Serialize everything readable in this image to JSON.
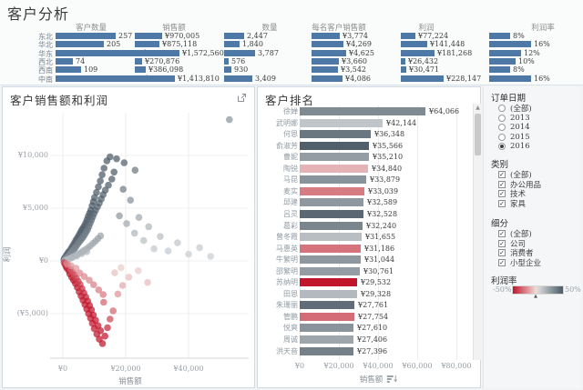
{
  "page_title": "客户分析",
  "colors": {
    "bar_blue": "#4e79a7",
    "scale_negative": "#c0152b",
    "scale_mid_low": "#eedbd7",
    "scale_mid_high": "#cdd1d4",
    "scale_positive": "#4b5a66"
  },
  "top_charts": {
    "regions": [
      "东北",
      "华北",
      "华东",
      "西北",
      "西南",
      "中南"
    ],
    "charts": [
      {
        "title": "客户数量",
        "type": "bar",
        "values": [
          257,
          205,
          340,
          74,
          109,
          346
        ],
        "labels": [
          "257",
          "205",
          "340",
          "74",
          "109",
          "346"
        ]
      },
      {
        "title": "销售额",
        "type": "bar",
        "values": [
          970005,
          875118,
          1572560,
          270876,
          386098,
          1413810
        ],
        "labels": [
          "¥970,005",
          "¥875,118",
          "¥1,572,560",
          "¥270,876",
          "¥386,098",
          "¥1,413,810"
        ]
      },
      {
        "title": "数量",
        "type": "bar",
        "values": [
          2447,
          1840,
          3787,
          576,
          930,
          3409
        ],
        "labels": [
          "2,447",
          "1,840",
          "3,787",
          "576",
          "930",
          "3,409"
        ]
      },
      {
        "title": "每名客户销售额",
        "type": "bar",
        "values": [
          3774,
          4269,
          4625,
          3660,
          3542,
          4086
        ],
        "labels": [
          "¥3,774",
          "¥4,269",
          "¥4,625",
          "¥3,660",
          "¥3,542",
          "¥4,086"
        ]
      },
      {
        "title": "利润",
        "type": "bar",
        "values": [
          77224,
          141448,
          181268,
          26432,
          30471,
          228147
        ],
        "labels": [
          "¥77,224",
          "¥141,448",
          "¥181,268",
          "¥26,432",
          "¥30,471",
          "¥228,147"
        ]
      },
      {
        "title": "利润率",
        "type": "bar",
        "values": [
          8,
          16,
          12,
          10,
          8,
          16
        ],
        "labels": [
          "8%",
          "16%",
          "12%",
          "10%",
          "8%",
          "16%"
        ]
      }
    ]
  },
  "scatter": {
    "title": "客户销售额和利润",
    "type": "scatter",
    "xlabel": "销售额",
    "ylabel": "利润",
    "x_ticks": [
      {
        "label": "¥0",
        "value": 0
      },
      {
        "label": "¥20,000",
        "value": 20000
      },
      {
        "label": "¥40,000",
        "value": 40000
      }
    ],
    "y_ticks": [
      {
        "label": "¥10,000",
        "value": 10000
      },
      {
        "label": "¥5,000",
        "value": 5000
      },
      {
        "label": "¥0",
        "value": 0
      },
      {
        "label": "(¥5,000)",
        "value": -5000
      }
    ],
    "points": [
      [
        300,
        100
      ],
      [
        500,
        260
      ],
      [
        700,
        150
      ],
      [
        900,
        420
      ],
      [
        1100,
        300
      ],
      [
        1300,
        620
      ],
      [
        1500,
        360
      ],
      [
        1700,
        820
      ],
      [
        1900,
        500
      ],
      [
        2100,
        930
      ],
      [
        2300,
        640
      ],
      [
        2500,
        1120
      ],
      [
        2700,
        790
      ],
      [
        2900,
        1310
      ],
      [
        3100,
        940
      ],
      [
        3300,
        1520
      ],
      [
        3500,
        1080
      ],
      [
        3700,
        1710
      ],
      [
        3900,
        1240
      ],
      [
        4100,
        1930
      ],
      [
        4300,
        1400
      ],
      [
        4500,
        2120
      ],
      [
        4700,
        1590
      ],
      [
        4900,
        2330
      ],
      [
        5100,
        1760
      ],
      [
        5300,
        2540
      ],
      [
        5500,
        1900
      ],
      [
        5700,
        2760
      ],
      [
        5900,
        2060
      ],
      [
        6100,
        2970
      ],
      [
        6300,
        2210
      ],
      [
        6500,
        3140
      ],
      [
        6700,
        2380
      ],
      [
        6900,
        3350
      ],
      [
        7100,
        2580
      ],
      [
        7300,
        3620
      ],
      [
        7500,
        2790
      ],
      [
        7700,
        3910
      ],
      [
        7900,
        2990
      ],
      [
        8100,
        4230
      ],
      [
        8300,
        3280
      ],
      [
        8500,
        4520
      ],
      [
        8700,
        3590
      ],
      [
        8900,
        4810
      ],
      [
        9100,
        3880
      ],
      [
        9300,
        5230
      ],
      [
        9500,
        4190
      ],
      [
        9700,
        5620
      ],
      [
        9900,
        4480
      ],
      [
        10100,
        6010
      ],
      [
        10400,
        4790
      ],
      [
        10700,
        6490
      ],
      [
        11000,
        5120
      ],
      [
        11300,
        7030
      ],
      [
        11600,
        5480
      ],
      [
        11900,
        7580
      ],
      [
        12200,
        5870
      ],
      [
        12500,
        8170
      ],
      [
        12800,
        6280
      ],
      [
        13100,
        8790
      ],
      [
        13500,
        6710
      ],
      [
        14000,
        9480
      ],
      [
        14500,
        7180
      ],
      [
        15000,
        9860
      ],
      [
        15600,
        7760
      ],
      [
        16300,
        8420
      ],
      [
        17100,
        9680
      ],
      [
        19500,
        9300
      ],
      [
        23000,
        8600
      ],
      [
        18000,
        4280
      ],
      [
        19200,
        6790
      ],
      [
        20300,
        3540
      ],
      [
        21500,
        5760
      ],
      [
        22800,
        2640
      ],
      [
        24200,
        4120
      ],
      [
        25700,
        1930
      ],
      [
        27300,
        3240
      ],
      [
        29000,
        1150
      ],
      [
        31000,
        2310
      ],
      [
        33500,
        940
      ],
      [
        36500,
        1720
      ],
      [
        40000,
        640
      ],
      [
        43500,
        1260
      ],
      [
        47000,
        430
      ],
      [
        53000,
        13400
      ],
      [
        800,
        80
      ],
      [
        1600,
        140
      ],
      [
        2400,
        260
      ],
      [
        3200,
        380
      ],
      [
        4000,
        520
      ],
      [
        4800,
        640
      ],
      [
        5600,
        780
      ],
      [
        6400,
        940
      ],
      [
        7200,
        1080
      ],
      [
        8000,
        1260
      ],
      [
        8800,
        1440
      ],
      [
        9600,
        1660
      ],
      [
        10400,
        1880
      ],
      [
        11200,
        2120
      ],
      [
        12000,
        2380
      ],
      [
        2000,
        180
      ],
      [
        3000,
        330
      ],
      [
        4400,
        460
      ],
      [
        6000,
        700
      ],
      [
        7600,
        880
      ],
      [
        400,
        -160
      ],
      [
        700,
        -310
      ],
      [
        1000,
        -520
      ],
      [
        1300,
        -710
      ],
      [
        1600,
        -420
      ],
      [
        1900,
        -920
      ],
      [
        2200,
        -1230
      ],
      [
        2500,
        -830
      ],
      [
        2800,
        -1540
      ],
      [
        3100,
        -1040
      ],
      [
        3400,
        -1830
      ],
      [
        3700,
        -1320
      ],
      [
        4000,
        -2140
      ],
      [
        4300,
        -1630
      ],
      [
        4600,
        -2520
      ],
      [
        4900,
        -1940
      ],
      [
        5200,
        -2930
      ],
      [
        5500,
        -2240
      ],
      [
        5800,
        -3340
      ],
      [
        6100,
        -2640
      ],
      [
        6400,
        -3730
      ],
      [
        6700,
        -3040
      ],
      [
        7000,
        -4140
      ],
      [
        7300,
        -3430
      ],
      [
        7600,
        -4560
      ],
      [
        7900,
        -3820
      ],
      [
        8200,
        -5010
      ],
      [
        8500,
        -4230
      ],
      [
        8800,
        -5440
      ],
      [
        9100,
        -4640
      ],
      [
        9400,
        -5920
      ],
      [
        9700,
        -5130
      ],
      [
        10000,
        -6430
      ],
      [
        10400,
        -5630
      ],
      [
        10800,
        -6940
      ],
      [
        11200,
        -6140
      ],
      [
        11600,
        -7420
      ],
      [
        12000,
        -6620
      ],
      [
        12600,
        -7840
      ],
      [
        13400,
        -7130
      ],
      [
        14200,
        -6340
      ],
      [
        15000,
        -5520
      ],
      [
        16000,
        -4730
      ],
      [
        13000,
        -3920
      ],
      [
        17500,
        -3140
      ],
      [
        19000,
        -2330
      ],
      [
        21000,
        -1540
      ],
      [
        24000,
        -930
      ],
      [
        27000,
        -2040
      ],
      [
        16500,
        -1130
      ],
      [
        18500,
        -640
      ],
      [
        1200,
        -240
      ],
      [
        2600,
        -460
      ],
      [
        4200,
        -690
      ],
      [
        5400,
        -1150
      ],
      [
        6800,
        -1480
      ],
      [
        8400,
        -1830
      ],
      [
        9800,
        -2260
      ],
      [
        11400,
        -2750
      ],
      [
        12800,
        -3190
      ]
    ]
  },
  "ranking": {
    "title": "客户排名",
    "type": "bar",
    "xlabel": "销售额",
    "x_ticks": [
      {
        "label": "¥0",
        "value": 0
      },
      {
        "label": "¥20,000",
        "value": 20000
      },
      {
        "label": "¥40,000",
        "value": 40000
      },
      {
        "label": "¥60,000",
        "value": 60000
      },
      {
        "label": "¥80,000",
        "value": 80000
      }
    ],
    "rows": [
      {
        "name": "徐婵",
        "label": "¥64,066",
        "value": 64066,
        "profit_rate": 0.3
      },
      {
        "name": "武明娜",
        "label": "¥42,144",
        "value": 42144,
        "profit_rate": 0.05
      },
      {
        "name": "何恩",
        "label": "¥36,348",
        "value": 36348,
        "profit_rate": 0.38
      },
      {
        "name": "俞淑芳",
        "label": "¥35,566",
        "value": 35566,
        "profit_rate": 0.48
      },
      {
        "name": "曹妮",
        "label": "¥35,210",
        "value": 35210,
        "profit_rate": 0.22
      },
      {
        "name": "陶锐",
        "label": "¥34,840",
        "value": 34840,
        "profit_rate": -0.1
      },
      {
        "name": "马昆",
        "label": "¥33,879",
        "value": 33879,
        "profit_rate": 0.26
      },
      {
        "name": "麦实",
        "label": "¥33,039",
        "value": 33039,
        "profit_rate": -0.24
      },
      {
        "name": "邱建",
        "label": "¥32,589",
        "value": 32589,
        "profit_rate": 0.24
      },
      {
        "name": "吕灵",
        "label": "¥32,528",
        "value": 32528,
        "profit_rate": 0.44
      },
      {
        "name": "葛彩",
        "label": "¥32,240",
        "value": 32240,
        "profit_rate": 0.32
      },
      {
        "name": "曾冬霞",
        "label": "¥31,655",
        "value": 31655,
        "profit_rate": 0.08
      },
      {
        "name": "马惠英",
        "label": "¥31,186",
        "value": 31186,
        "profit_rate": -0.26
      },
      {
        "name": "牛繁明",
        "label": "¥31,044",
        "value": 31044,
        "profit_rate": 0.24
      },
      {
        "name": "邵繁明",
        "label": "¥30,761",
        "value": 30761,
        "profit_rate": 0.22
      },
      {
        "name": "苏纳明",
        "label": "¥29,532",
        "value": 29532,
        "profit_rate": -0.5
      },
      {
        "name": "田恩",
        "label": "¥29,328",
        "value": 29328,
        "profit_rate": 0.1
      },
      {
        "name": "朱珊丽",
        "label": "¥27,761",
        "value": 27761,
        "profit_rate": 0.42
      },
      {
        "name": "管鹏",
        "label": "¥27,754",
        "value": 27754,
        "profit_rate": -0.28
      },
      {
        "name": "悦爽",
        "label": "¥27,610",
        "value": 27610,
        "profit_rate": 0.26
      },
      {
        "name": "周诚",
        "label": "¥27,406",
        "value": 27406,
        "profit_rate": 0.18
      },
      {
        "name": "洪天音",
        "label": "¥27,396",
        "value": 27396,
        "profit_rate": 0.34
      }
    ]
  },
  "filters": {
    "order_date": {
      "title": "订单日期",
      "type": "radio",
      "options": [
        "(全部)",
        "2013",
        "2014",
        "2015",
        "2016"
      ],
      "selected": "2016"
    },
    "category": {
      "title": "类别",
      "type": "checkbox",
      "options": [
        "(全部)",
        "办公用品",
        "技术",
        "家具"
      ],
      "checked": [
        "(全部)",
        "办公用品",
        "技术",
        "家具"
      ]
    },
    "segment": {
      "title": "细分",
      "type": "checkbox",
      "options": [
        "(全部)",
        "公司",
        "消费者",
        "小型企业"
      ],
      "checked": [
        "(全部)",
        "公司",
        "消费者",
        "小型企业"
      ]
    },
    "profit_legend": {
      "title": "利润率",
      "min_label": "-50%",
      "max_label": "50%"
    }
  }
}
